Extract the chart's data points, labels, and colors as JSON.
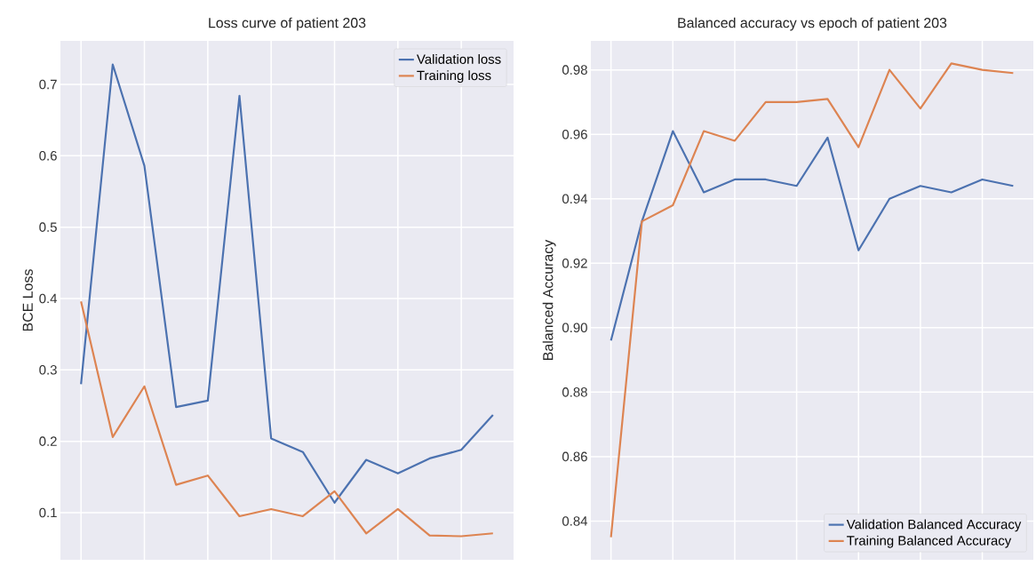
{
  "chart_data": [
    {
      "type": "line",
      "title": "Loss curve of patient 203",
      "ylabel": "BCE Loss",
      "categories": [
        null,
        null,
        null,
        null,
        null,
        null,
        null,
        null,
        null,
        null,
        null,
        null,
        null,
        null
      ],
      "series": [
        {
          "name": "Validation loss",
          "color": "#4c72b0",
          "values": [
            0.28,
            0.728,
            0.586,
            0.248,
            0.257,
            0.684,
            0.204,
            0.185,
            0.114,
            0.174,
            0.155,
            0.176,
            0.188,
            0.237
          ]
        },
        {
          "name": "Training loss",
          "color": "#dd8452",
          "values": [
            0.396,
            0.206,
            0.277,
            0.139,
            0.152,
            0.095,
            0.105,
            0.095,
            0.13,
            0.071,
            0.105,
            0.068,
            0.067,
            0.071
          ]
        }
      ],
      "ylim": [
        0.034,
        0.761
      ],
      "yticks": [
        0.1,
        0.2,
        0.3,
        0.4,
        0.5,
        0.6,
        0.7
      ],
      "grid": true,
      "legend": "top right"
    },
    {
      "type": "line",
      "title": "Balanced accuracy vs epoch of patient 203",
      "ylabel": "Balanced Accuracy",
      "categories": [
        null,
        null,
        null,
        null,
        null,
        null,
        null,
        null,
        null,
        null,
        null,
        null,
        null,
        null
      ],
      "series": [
        {
          "name": "Validation Balanced Accuracy",
          "color": "#4c72b0",
          "values": [
            0.896,
            0.933,
            0.961,
            0.942,
            0.946,
            0.946,
            0.944,
            0.959,
            0.924,
            0.94,
            0.944,
            0.942,
            0.946,
            0.944
          ]
        },
        {
          "name": "Training Balanced Accuracy",
          "color": "#dd8452",
          "values": [
            0.835,
            0.933,
            0.938,
            0.961,
            0.958,
            0.97,
            0.97,
            0.971,
            0.956,
            0.98,
            0.968,
            0.982,
            0.98,
            0.979
          ]
        }
      ],
      "ylim": [
        0.828,
        0.989
      ],
      "yticks": [
        0.84,
        0.86,
        0.88,
        {
          "value": 0.9,
          "label": "0.90"
        },
        0.92,
        0.94,
        0.96,
        0.98
      ],
      "grid": true,
      "legend": "bottom right"
    }
  ]
}
